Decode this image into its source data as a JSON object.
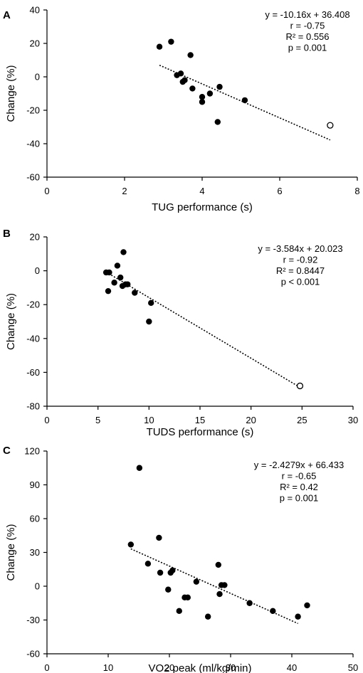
{
  "chart_data": [
    {
      "type": "scatter",
      "panel_label": "A",
      "title": "",
      "xlabel": "TUG performance (s)",
      "ylabel": "Change (%)",
      "xlim": [
        0,
        8
      ],
      "ylim": [
        -60,
        40
      ],
      "xticks": [
        "0",
        "2",
        "4",
        "6",
        "8"
      ],
      "yticks": [
        "-60",
        "-40",
        "-20",
        "0",
        "20",
        "40"
      ],
      "points_filled": [
        {
          "x": 2.9,
          "y": 18
        },
        {
          "x": 3.2,
          "y": 21
        },
        {
          "x": 3.35,
          "y": 1
        },
        {
          "x": 3.45,
          "y": 2
        },
        {
          "x": 3.5,
          "y": -3
        },
        {
          "x": 3.55,
          "y": -2
        },
        {
          "x": 3.7,
          "y": 13
        },
        {
          "x": 3.75,
          "y": -7
        },
        {
          "x": 4.0,
          "y": -15
        },
        {
          "x": 4.0,
          "y": -12
        },
        {
          "x": 4.2,
          "y": -10
        },
        {
          "x": 4.4,
          "y": -27
        },
        {
          "x": 4.45,
          "y": -6
        },
        {
          "x": 5.1,
          "y": -14
        }
      ],
      "points_open": [
        {
          "x": 7.3,
          "y": -29
        }
      ],
      "trendline": {
        "x_start": 2.9,
        "x_end": 7.3,
        "slope": -10.16,
        "intercept": 36.408
      },
      "stats": [
        "y = -10.16x + 36.408",
        "r = -0.75",
        "R² = 0.556",
        "p = 0.001"
      ]
    },
    {
      "type": "scatter",
      "panel_label": "B",
      "title": "",
      "xlabel": "TUDS performance (s)",
      "ylabel": "Change (%)",
      "xlim": [
        0,
        30
      ],
      "ylim": [
        -80,
        20
      ],
      "xticks": [
        "0",
        "5",
        "10",
        "15",
        "20",
        "25",
        "30"
      ],
      "yticks": [
        "-80",
        "-60",
        "-40",
        "-20",
        "0",
        "20"
      ],
      "points_filled": [
        {
          "x": 5.8,
          "y": -1
        },
        {
          "x": 6.0,
          "y": -12
        },
        {
          "x": 6.1,
          "y": -1
        },
        {
          "x": 6.6,
          "y": -7
        },
        {
          "x": 6.9,
          "y": 3
        },
        {
          "x": 7.2,
          "y": -4
        },
        {
          "x": 7.4,
          "y": -9
        },
        {
          "x": 7.5,
          "y": 11
        },
        {
          "x": 7.7,
          "y": -8
        },
        {
          "x": 7.9,
          "y": -8
        },
        {
          "x": 8.6,
          "y": -13
        },
        {
          "x": 10.0,
          "y": -30
        },
        {
          "x": 10.2,
          "y": -19
        }
      ],
      "points_open": [
        {
          "x": 24.8,
          "y": -68
        }
      ],
      "trendline": {
        "x_start": 5.8,
        "x_end": 24.8,
        "slope": -3.584,
        "intercept": 20.023
      },
      "stats": [
        "y = -3.584x + 20.023",
        "r = -0.92",
        "R² = 0.8447",
        "p < 0.001"
      ]
    },
    {
      "type": "scatter",
      "panel_label": "C",
      "title": "",
      "xlabel": "VO2 peak (ml/kg/min)",
      "ylabel": "Change (%)",
      "xlim": [
        0,
        50
      ],
      "ylim": [
        -60,
        120
      ],
      "xticks": [
        "0",
        "10",
        "20",
        "30",
        "40",
        "50"
      ],
      "yticks": [
        "-60",
        "-30",
        "0",
        "30",
        "60",
        "90",
        "120"
      ],
      "points_filled": [
        {
          "x": 13.7,
          "y": 37
        },
        {
          "x": 15.1,
          "y": 105
        },
        {
          "x": 16.5,
          "y": 20
        },
        {
          "x": 18.3,
          "y": 43
        },
        {
          "x": 18.5,
          "y": 12
        },
        {
          "x": 19.8,
          "y": -3
        },
        {
          "x": 20.2,
          "y": 12
        },
        {
          "x": 20.5,
          "y": 14
        },
        {
          "x": 21.6,
          "y": -22
        },
        {
          "x": 22.5,
          "y": -10
        },
        {
          "x": 23.0,
          "y": -10
        },
        {
          "x": 24.4,
          "y": 4
        },
        {
          "x": 26.3,
          "y": -27
        },
        {
          "x": 28.0,
          "y": 19
        },
        {
          "x": 28.2,
          "y": -7
        },
        {
          "x": 28.5,
          "y": 1
        },
        {
          "x": 29.0,
          "y": 1
        },
        {
          "x": 33.1,
          "y": -15
        },
        {
          "x": 36.9,
          "y": -22
        },
        {
          "x": 41.0,
          "y": -27
        },
        {
          "x": 42.5,
          "y": -17
        }
      ],
      "points_open": [],
      "trendline": {
        "x_start": 13.7,
        "x_end": 41.0,
        "slope": -2.4279,
        "intercept": 66.433
      },
      "stats": [
        "y = -2.4279x + 66.433",
        "r = -0.65",
        "R² = 0.42",
        "p = 0.001"
      ]
    }
  ]
}
